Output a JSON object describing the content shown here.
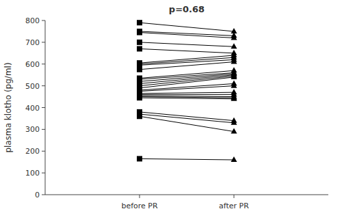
{
  "chart_data": {
    "type": "slope",
    "title": "p=0.68",
    "ylabel": "plasma klotho (pg/ml)",
    "categories": [
      "before PR",
      "after PR"
    ],
    "series": [
      {
        "values": [
          790,
          750
        ]
      },
      {
        "values": [
          750,
          730
        ]
      },
      {
        "values": [
          745,
          720
        ]
      },
      {
        "values": [
          700,
          680
        ]
      },
      {
        "values": [
          670,
          650
        ]
      },
      {
        "values": [
          605,
          640
        ]
      },
      {
        "values": [
          600,
          630
        ]
      },
      {
        "values": [
          595,
          620
        ]
      },
      {
        "values": [
          575,
          610
        ]
      },
      {
        "values": [
          535,
          570
        ]
      },
      {
        "values": [
          530,
          560
        ]
      },
      {
        "values": [
          520,
          555
        ]
      },
      {
        "values": [
          510,
          550
        ]
      },
      {
        "values": [
          500,
          545
        ]
      },
      {
        "values": [
          490,
          540
        ]
      },
      {
        "values": [
          480,
          510
        ]
      },
      {
        "values": [
          475,
          500
        ]
      },
      {
        "values": [
          465,
          470
        ]
      },
      {
        "values": [
          460,
          460
        ]
      },
      {
        "values": [
          455,
          450
        ]
      },
      {
        "values": [
          450,
          445
        ]
      },
      {
        "values": [
          445,
          440
        ]
      },
      {
        "values": [
          380,
          340
        ]
      },
      {
        "values": [
          370,
          330
        ]
      },
      {
        "values": [
          360,
          290
        ]
      },
      {
        "values": [
          165,
          160
        ]
      }
    ],
    "color": "#000000",
    "ylim": [
      0,
      800
    ],
    "yticks": [
      0,
      100,
      200,
      300,
      400,
      500,
      600,
      700,
      800
    ],
    "grid": false
  }
}
